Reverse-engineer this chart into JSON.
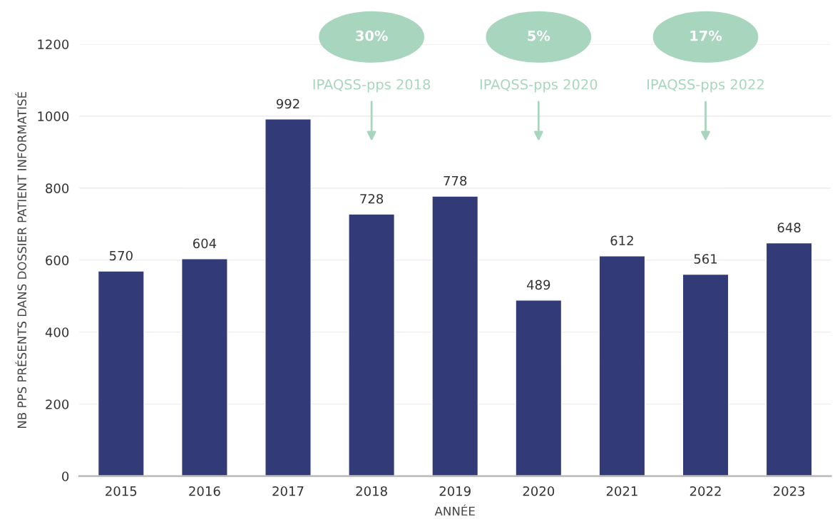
{
  "chart_data": {
    "type": "bar",
    "categories": [
      "2015",
      "2016",
      "2017",
      "2018",
      "2019",
      "2020",
      "2021",
      "2022",
      "2023"
    ],
    "values": [
      570,
      604,
      992,
      728,
      778,
      489,
      612,
      561,
      648
    ],
    "color": "#323b78",
    "ylim": [
      0,
      1200
    ],
    "yticks": [
      0,
      200,
      400,
      600,
      800,
      1000,
      1200
    ],
    "grid": "y",
    "data_labels": true,
    "xlabel": "ANNÉE",
    "ylabel": "NB PPS PRÉSENTS DANS DOSSIER PATIENT INFORMATISÉ",
    "annotations": [
      "30%",
      "IPAQSS-pps 2018",
      "5%",
      "IPAQSS-pps 2020",
      "17%",
      "IPAQSS-pps 2022"
    ]
  }
}
